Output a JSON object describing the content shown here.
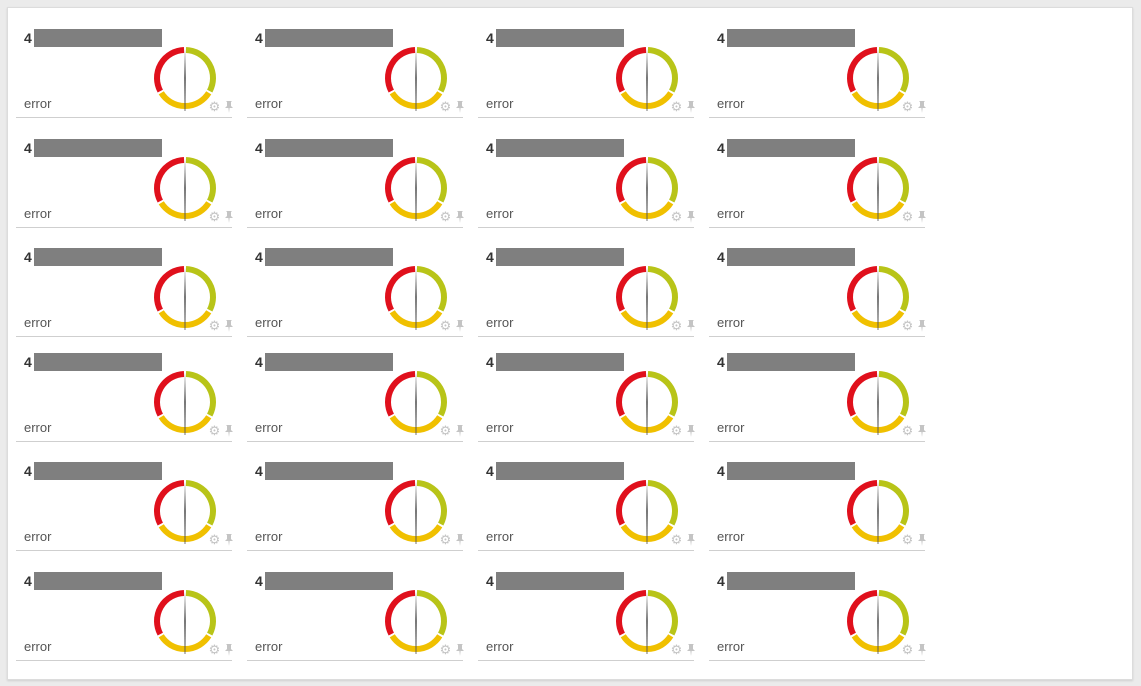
{
  "theme": {
    "red": "#e0101c",
    "yellow": "#f0c000",
    "olive": "#b8c418",
    "needle": "#555555",
    "icon": "#c4c4c4"
  },
  "icons": {
    "settings": "gear-icon",
    "pin": "pin-icon"
  },
  "tiles": [
    {
      "title_prefix": "4",
      "status": "error"
    },
    {
      "title_prefix": "4",
      "status": "error"
    },
    {
      "title_prefix": "4",
      "status": "error"
    },
    {
      "title_prefix": "4",
      "status": "error"
    },
    {
      "title_prefix": "4",
      "status": "error"
    },
    {
      "title_prefix": "4",
      "status": "error"
    },
    {
      "title_prefix": "4",
      "status": "error"
    },
    {
      "title_prefix": "4",
      "status": "error"
    },
    {
      "title_prefix": "4",
      "status": "error"
    },
    {
      "title_prefix": "4",
      "status": "error"
    },
    {
      "title_prefix": "4",
      "status": "error"
    },
    {
      "title_prefix": "4",
      "status": "error"
    },
    {
      "title_prefix": "4",
      "status": "error"
    },
    {
      "title_prefix": "4",
      "status": "error"
    },
    {
      "title_prefix": "4",
      "status": "error"
    },
    {
      "title_prefix": "4",
      "status": "error"
    },
    {
      "title_prefix": "4",
      "status": "error"
    },
    {
      "title_prefix": "4",
      "status": "error"
    },
    {
      "title_prefix": "4",
      "status": "error"
    },
    {
      "title_prefix": "4",
      "status": "error"
    },
    {
      "title_prefix": "4",
      "status": "error"
    },
    {
      "title_prefix": "4",
      "status": "error"
    },
    {
      "title_prefix": "4",
      "status": "error"
    },
    {
      "title_prefix": "4",
      "status": "error"
    }
  ]
}
